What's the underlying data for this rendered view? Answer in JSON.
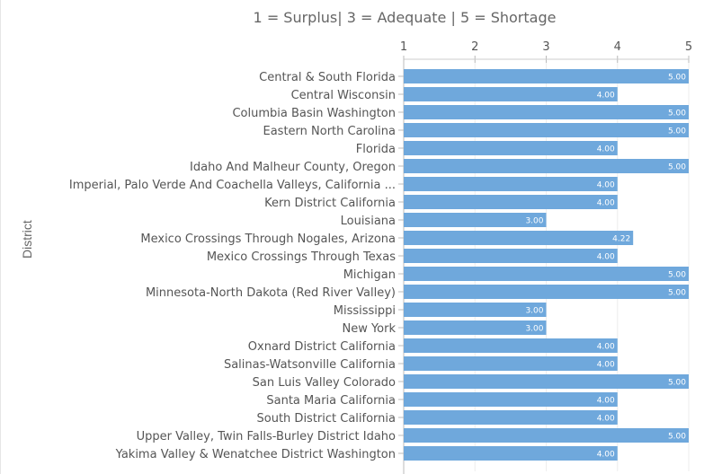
{
  "chart_data": {
    "type": "bar",
    "orientation": "horizontal",
    "title": "1 = Surplus| 3 = Adequate | 5 = Shortage",
    "ylabel": "District",
    "xlim": [
      1,
      5
    ],
    "x_ticks": [
      "1",
      "2",
      "3",
      "4",
      "5"
    ],
    "x_axis_position": "top",
    "grid": true,
    "bar_color": "#6fa8dc",
    "categories": [
      "Central & South Florida",
      "Central Wisconsin",
      "Columbia Basin Washington",
      "Eastern North Carolina",
      "Florida",
      "Idaho And Malheur County, Oregon",
      "Imperial, Palo Verde And Coachella Valleys, California ...",
      "Kern District California",
      "Louisiana",
      "Mexico Crossings Through Nogales, Arizona",
      "Mexico Crossings Through Texas",
      "Michigan",
      "Minnesota-North Dakota (Red River Valley)",
      "Mississippi",
      "New York",
      "Oxnard District California",
      "Salinas-Watsonville California",
      "San Luis Valley Colorado",
      "Santa Maria California",
      "South District California",
      "Upper Valley, Twin Falls-Burley District Idaho",
      "Yakima Valley & Wenatchee District Washington"
    ],
    "values": [
      5,
      4,
      5,
      5,
      4,
      5,
      4,
      4,
      3,
      4.22,
      4,
      5,
      5,
      3,
      3,
      4,
      4,
      5,
      4,
      4,
      5,
      4
    ],
    "data_labels": [
      "5.00",
      "4.00",
      "5.00",
      "5.00",
      "4.00",
      "5.00",
      "4.00",
      "4.00",
      "3.00",
      "4.22",
      "4.00",
      "5.00",
      "5.00",
      "3.00",
      "3.00",
      "4.00",
      "4.00",
      "5.00",
      "4.00",
      "4.00",
      "5.00",
      "4.00"
    ]
  }
}
